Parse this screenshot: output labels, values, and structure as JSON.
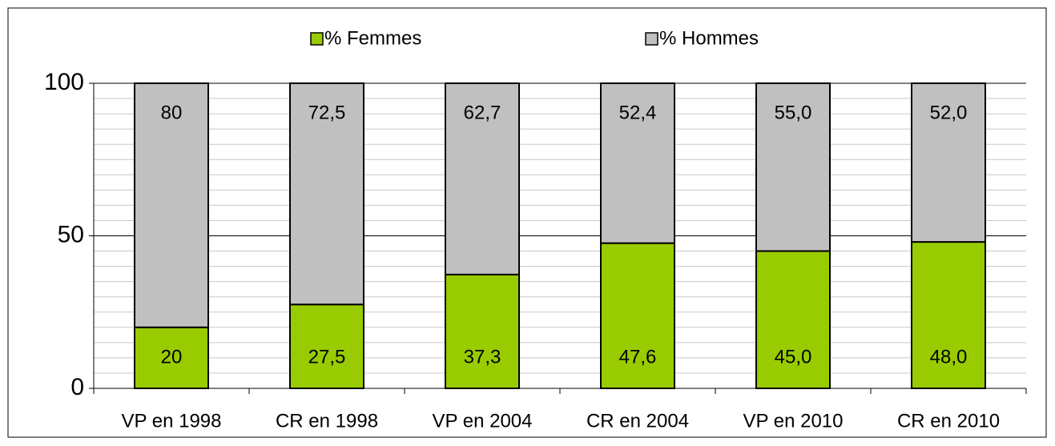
{
  "chart_data": {
    "type": "stacked_bar",
    "categories": [
      "VP en 1998",
      "CR en 1998",
      "VP en 2004",
      "CR en 2004",
      "VP en 2010",
      "CR en 2010"
    ],
    "series": [
      {
        "name": "% Femmes",
        "color": "#99cc00",
        "values": [
          20,
          27.5,
          37.3,
          47.6,
          45.0,
          48.0
        ],
        "value_labels": [
          "20",
          "27,5",
          "37,3",
          "47,6",
          "45,0",
          "48,0"
        ]
      },
      {
        "name": "% Hommes",
        "color": "#c0c0c0",
        "values": [
          80,
          72.5,
          62.7,
          52.4,
          55.0,
          52.0
        ],
        "value_labels": [
          "80",
          "72,5",
          "62,7",
          "52,4",
          "55,0",
          "52,0"
        ]
      }
    ],
    "ylim": [
      0,
      100
    ],
    "yticks": [
      0,
      50,
      100
    ],
    "minor_yticks": [
      5,
      10,
      15,
      20,
      25,
      30,
      35,
      40,
      45,
      55,
      60,
      65,
      70,
      75,
      80,
      85,
      90,
      95
    ],
    "grid": true,
    "legend": "top"
  }
}
